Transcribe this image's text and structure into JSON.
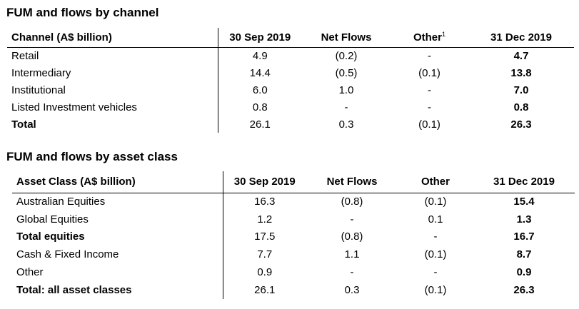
{
  "channel": {
    "title": "FUM and flows by channel",
    "headers": [
      "Channel (A$ billion)",
      "30 Sep 2019",
      "Net Flows",
      "Other",
      "31 Dec 2019"
    ],
    "other_footnote": "1",
    "rows": [
      [
        "Retail",
        "4.9",
        "(0.2)",
        "-",
        "4.7"
      ],
      [
        "Intermediary",
        "14.4",
        "(0.5)",
        "(0.1)",
        "13.8"
      ],
      [
        "Institutional",
        "6.0",
        "1.0",
        "-",
        "7.0"
      ],
      [
        "Listed Investment vehicles",
        "0.8",
        "-",
        "-",
        "0.8"
      ],
      [
        "Total",
        "26.1",
        "0.3",
        "(0.1)",
        "26.3"
      ]
    ]
  },
  "asset_class": {
    "title": "FUM and flows by asset class",
    "headers": [
      "Asset Class (A$ billion)",
      "30 Sep 2019",
      "Net Flows",
      "Other",
      "31 Dec 2019"
    ],
    "rows": [
      [
        "Australian Equities",
        "16.3",
        "(0.8)",
        "(0.1)",
        "15.4"
      ],
      [
        "Global Equities",
        "1.2",
        "-",
        "0.1",
        "1.3"
      ],
      [
        "Total equities",
        "17.5",
        "(0.8)",
        "-",
        "16.7"
      ],
      [
        "Cash & Fixed Income",
        "7.7",
        "1.1",
        "(0.1)",
        "8.7"
      ],
      [
        "Other",
        "0.9",
        "-",
        "-",
        "0.9"
      ],
      [
        "Total: all asset classes",
        "26.1",
        "0.3",
        "(0.1)",
        "26.3"
      ]
    ]
  }
}
